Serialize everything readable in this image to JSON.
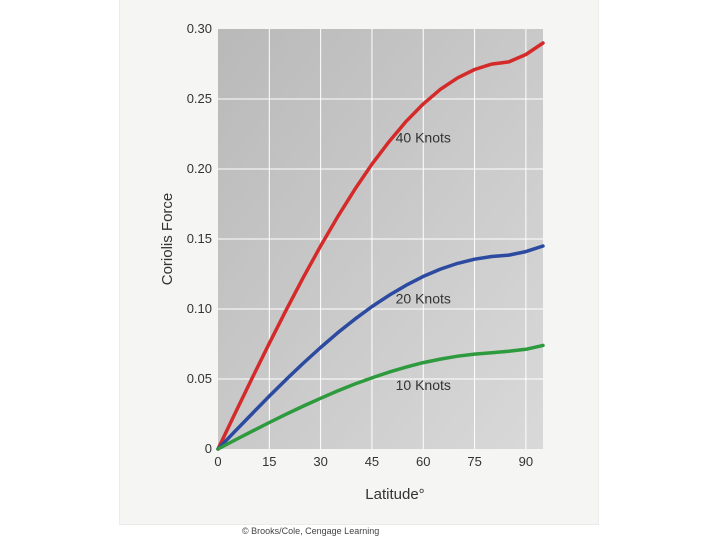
{
  "chart_data": {
    "type": "line",
    "title": "",
    "xlabel": "Latitude°",
    "ylabel": "Coriolis Force",
    "xlim": [
      0,
      95
    ],
    "ylim": [
      0,
      0.3
    ],
    "xticks": [
      0,
      15,
      30,
      45,
      60,
      75,
      90
    ],
    "xtick_labels": [
      "0",
      "15",
      "30",
      "45",
      "60",
      "75",
      "90"
    ],
    "yticks": [
      0,
      0.05,
      0.1,
      0.15,
      0.2,
      0.25,
      0.3
    ],
    "ytick_labels": [
      "0",
      "0.05",
      "0.10",
      "0.15",
      "0.20",
      "0.25",
      "0.30"
    ],
    "grid": true,
    "series": [
      {
        "name": "40 Knots",
        "color": "#d42a2a",
        "label_at": [
          60,
          0.219
        ],
        "points": [
          [
            0,
            0
          ],
          [
            5,
            0.0255
          ],
          [
            10,
            0.0507
          ],
          [
            15,
            0.0755
          ],
          [
            20,
            0.0996
          ],
          [
            25,
            0.1228
          ],
          [
            30,
            0.145
          ],
          [
            35,
            0.1659
          ],
          [
            40,
            0.1854
          ],
          [
            45,
            0.2034
          ],
          [
            50,
            0.2196
          ],
          [
            55,
            0.2341
          ],
          [
            60,
            0.2465
          ],
          [
            65,
            0.2569
          ],
          [
            70,
            0.2651
          ],
          [
            75,
            0.2711
          ],
          [
            80,
            0.2749
          ],
          [
            85,
            0.2765
          ],
          [
            90,
            0.2818
          ],
          [
            95,
            0.29
          ]
        ]
      },
      {
        "name": "20 Knots",
        "color": "#2b4aa0",
        "label_at": [
          60,
          0.104
        ],
        "points": [
          [
            0,
            0
          ],
          [
            5,
            0.0127
          ],
          [
            10,
            0.0253
          ],
          [
            15,
            0.0378
          ],
          [
            20,
            0.0498
          ],
          [
            25,
            0.0614
          ],
          [
            30,
            0.0725
          ],
          [
            35,
            0.083
          ],
          [
            40,
            0.0927
          ],
          [
            45,
            0.1017
          ],
          [
            50,
            0.1098
          ],
          [
            55,
            0.117
          ],
          [
            60,
            0.1233
          ],
          [
            65,
            0.1285
          ],
          [
            70,
            0.1326
          ],
          [
            75,
            0.1356
          ],
          [
            80,
            0.1375
          ],
          [
            85,
            0.1385
          ],
          [
            90,
            0.141
          ],
          [
            95,
            0.145
          ]
        ]
      },
      {
        "name": "10 Knots",
        "color": "#2e9a3e",
        "label_at": [
          60,
          0.042
        ],
        "points": [
          [
            0,
            0
          ],
          [
            5,
            0.0064
          ],
          [
            10,
            0.0127
          ],
          [
            15,
            0.0189
          ],
          [
            20,
            0.0249
          ],
          [
            25,
            0.0307
          ],
          [
            30,
            0.0362
          ],
          [
            35,
            0.0415
          ],
          [
            40,
            0.0464
          ],
          [
            45,
            0.0508
          ],
          [
            50,
            0.0549
          ],
          [
            55,
            0.0585
          ],
          [
            60,
            0.0617
          ],
          [
            65,
            0.0642
          ],
          [
            70,
            0.0663
          ],
          [
            75,
            0.0678
          ],
          [
            80,
            0.0687
          ],
          [
            85,
            0.0698
          ],
          [
            90,
            0.0712
          ],
          [
            95,
            0.074
          ]
        ]
      }
    ]
  },
  "credit": "© Brooks/Cole, Cengage Learning"
}
